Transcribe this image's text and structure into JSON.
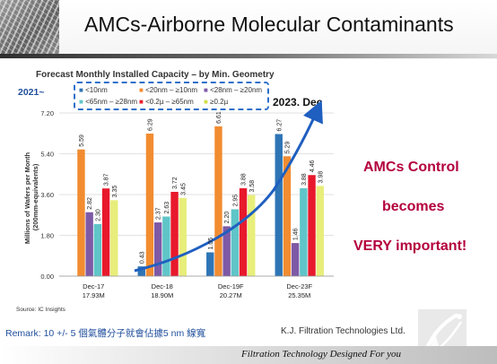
{
  "slide": {
    "title": "AMCs-Airborne Molecular Contaminants",
    "remark": "Remark: 10 +/- 5 個氣體分子就會佔據5 nm 線寬",
    "company": "K.J. Filtration Technologies Ltd.",
    "footer": "Filtration Technology Designed For you",
    "side_text": [
      "AMCs Control",
      "becomes",
      "VERY important!"
    ],
    "callout_left": "2021~",
    "callout_right": "2023. Dec",
    "accent_color": "#b3003c",
    "remark_color": "#1f4e9c"
  },
  "chart_data": {
    "type": "bar",
    "title": "Forecast Monthly Installed Capacity – by Min. Geometry",
    "ylabel": "Millions of Wafers per Month (200mm-equivalents)",
    "source": "Source:  IC Insights",
    "ylim": [
      0,
      7.2
    ],
    "yticks": [
      "7.20",
      "5.40",
      "3.60",
      "1.80",
      "0.00"
    ],
    "ytick_values": [
      7.2,
      5.4,
      3.6,
      1.8,
      0
    ],
    "grid": true,
    "legend_position": "top",
    "categories": [
      "Dec-17",
      "Dec-18",
      "Dec-19F",
      "Dec-23F"
    ],
    "category_totals": [
      "17.93M",
      "18.90M",
      "20.27M",
      "25.35M"
    ],
    "series": [
      {
        "name": "<10nm",
        "color": "#2e75b6",
        "values": [
          null,
          0.43,
          1.05,
          6.27
        ],
        "labels": [
          "",
          "0.43",
          "1.05",
          "6.27"
        ]
      },
      {
        "name": "<20nm – ≥10nm",
        "color": "#f28c30",
        "values": [
          5.59,
          6.29,
          6.61,
          5.29
        ],
        "labels": [
          "5.59",
          "6.29",
          "6.61",
          "5.29"
        ]
      },
      {
        "name": "<28nm – ≥20nm",
        "color": "#7e5aa6",
        "values": [
          2.82,
          2.37,
          2.2,
          1.46
        ],
        "labels": [
          "2.82",
          "2.37",
          "2.20",
          "1.46"
        ]
      },
      {
        "name": "<65nm – ≥28nm",
        "color": "#5fc5c8",
        "values": [
          2.3,
          2.63,
          2.95,
          3.88
        ],
        "labels": [
          "2.30",
          "2.63",
          "2.95",
          "3.88"
        ]
      },
      {
        "name": "<0.2µ – ≥65nm",
        "color": "#e8192c",
        "values": [
          3.87,
          3.72,
          3.88,
          4.46
        ],
        "labels": [
          "3.87",
          "3.72",
          "3.88",
          "4.46"
        ]
      },
      {
        "name": "≥0.2µ",
        "color": "#e8ee7a",
        "values": [
          3.35,
          3.45,
          3.58,
          3.98
        ],
        "labels": [
          "3.35",
          "3.45",
          "3.58",
          "3.98"
        ]
      }
    ]
  }
}
